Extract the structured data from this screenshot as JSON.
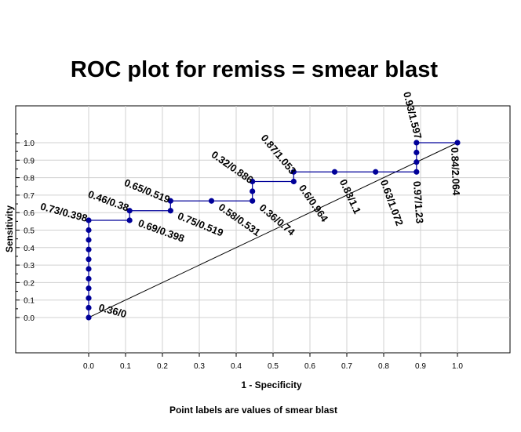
{
  "chart_data": {
    "type": "line",
    "title": "ROC plot for remiss = smear blast",
    "xlabel": "1 - Specificity",
    "ylabel": "Sensitivity",
    "footnote": "Point labels are values of smear blast",
    "xlim": [
      0,
      1
    ],
    "ylim": [
      0,
      1
    ],
    "grid": true,
    "x_ticks": [
      "0.0",
      "0.1",
      "0.2",
      "0.3",
      "0.4",
      "0.5",
      "0.6",
      "0.7",
      "0.8",
      "0.9",
      "1.0"
    ],
    "y_ticks": [
      "0.0",
      "0.1",
      "0.2",
      "0.3",
      "0.4",
      "0.5",
      "0.6",
      "0.7",
      "0.8",
      "0.9",
      "1.0"
    ],
    "series": [
      {
        "name": "ROC",
        "color": "#000099",
        "points": [
          [
            0,
            0
          ],
          [
            0,
            0.056
          ],
          [
            0,
            0.111
          ],
          [
            0,
            0.167
          ],
          [
            0,
            0.222
          ],
          [
            0,
            0.278
          ],
          [
            0,
            0.333
          ],
          [
            0,
            0.389
          ],
          [
            0,
            0.444
          ],
          [
            0,
            0.5
          ],
          [
            0,
            0.556
          ],
          [
            0.111,
            0.556
          ],
          [
            0.111,
            0.611
          ],
          [
            0.222,
            0.611
          ],
          [
            0.222,
            0.667
          ],
          [
            0.333,
            0.667
          ],
          [
            0.444,
            0.667
          ],
          [
            0.444,
            0.722
          ],
          [
            0.444,
            0.778
          ],
          [
            0.556,
            0.778
          ],
          [
            0.556,
            0.833
          ],
          [
            0.667,
            0.833
          ],
          [
            0.778,
            0.833
          ],
          [
            0.889,
            0.833
          ],
          [
            0.889,
            0.889
          ],
          [
            0.889,
            0.944
          ],
          [
            0.889,
            1
          ],
          [
            1,
            1
          ]
        ]
      }
    ],
    "reference_line": {
      "from": [
        0,
        0
      ],
      "to": [
        1,
        1
      ],
      "color": "#000000"
    },
    "point_labels": [
      {
        "x": 0,
        "y": 0,
        "text": "0.36/0"
      },
      {
        "x": 0,
        "y": 0.556,
        "text": "0.73/0.398"
      },
      {
        "x": 0.111,
        "y": 0.611,
        "text": "0.46/0.38"
      },
      {
        "x": 0.111,
        "y": 0.556,
        "text": "0.69/0.398"
      },
      {
        "x": 0.222,
        "y": 0.667,
        "text": "0.65/0.519"
      },
      {
        "x": 0.222,
        "y": 0.611,
        "text": "0.75/0.519"
      },
      {
        "x": 0.333,
        "y": 0.667,
        "text": "0.58/0.531"
      },
      {
        "x": 0.444,
        "y": 0.667,
        "text": "0.36/0.74"
      },
      {
        "x": 0.444,
        "y": 0.778,
        "text": "0.32/0.886"
      },
      {
        "x": 0.556,
        "y": 0.833,
        "text": "0.87/1.053"
      },
      {
        "x": 0.556,
        "y": 0.778,
        "text": "0.6/0.964"
      },
      {
        "x": 0.667,
        "y": 0.833,
        "text": "0.83/1.1"
      },
      {
        "x": 0.778,
        "y": 0.833,
        "text": "0.63/1.072"
      },
      {
        "x": 0.889,
        "y": 0.833,
        "text": "0.97/1.23"
      },
      {
        "x": 0.889,
        "y": 1,
        "text": "0.93/1.597"
      },
      {
        "x": 1,
        "y": 1,
        "text": "0.84/2.064"
      }
    ]
  }
}
